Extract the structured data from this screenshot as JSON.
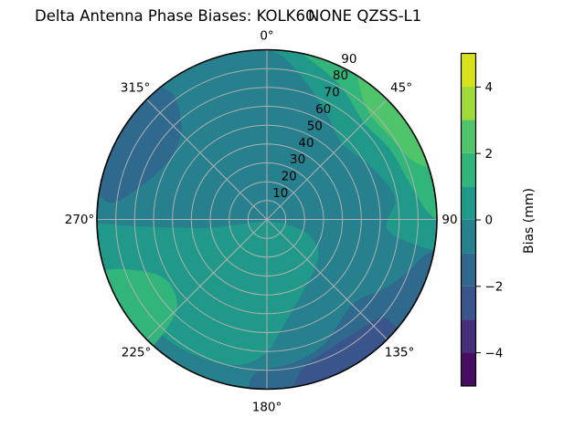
{
  "title": {
    "left": "Delta Antenna Phase Biases: KOLK60",
    "right": "NONE QZSS-L1"
  },
  "polar": {
    "theta_labels": [
      "0°",
      "45°",
      "90",
      "135°",
      "180°",
      "225°",
      "270°",
      "315°"
    ],
    "r_labels": [
      "10",
      "20",
      "30",
      "40",
      "50",
      "60",
      "70",
      "80",
      "90"
    ]
  },
  "colorbar": {
    "label": "Bias (mm)",
    "tick_labels": [
      "4",
      "2",
      "0",
      "−2",
      "−4"
    ],
    "band_colors_top_to_bottom": [
      "#d8e21b",
      "#a0da39",
      "#4fc46a",
      "#31b57b",
      "#21998a",
      "#26808e",
      "#2f6a8e",
      "#39558c",
      "#45307d",
      "#470d60"
    ]
  },
  "colors": {
    "c2_3": "#4fc46a",
    "c1_2": "#31b57b",
    "c0_1": "#21998a",
    "cm1_0": "#26808e",
    "cm2_1": "#2f6a8e",
    "cm3_2": "#39558c",
    "grid": "#b0b0b0",
    "edge": "#000000"
  },
  "chart_data": {
    "type": "polar_contour",
    "title": "Delta Antenna Phase Biases: KOLK60         NONE QZSS-L1",
    "station": "KOLK60",
    "signal": "NONE QZSS-L1",
    "azimuth_tick_deg": [
      0,
      45,
      90,
      135,
      180,
      225,
      270,
      315
    ],
    "radial_rings": [
      10,
      20,
      30,
      40,
      50,
      60,
      70,
      80,
      90
    ],
    "r_range": [
      0,
      90
    ],
    "colorbar_label": "Bias (mm)",
    "colorbar_ticks": [
      4,
      2,
      0,
      -2,
      -4
    ],
    "value_range_mm": [
      -5,
      5
    ],
    "contour_levels_mm": [
      -5,
      -4,
      -3,
      -2,
      -1,
      0,
      1,
      2,
      3,
      4,
      5
    ],
    "background_bias_mm": "-1 to 0",
    "features": [
      {
        "region": "NE rim patch, azimuth 30-75°, radius 78-90",
        "bias_mm": "2 to 3"
      },
      {
        "region": "NE band, azimuth 5-90°, radius 65-90",
        "bias_mm": "1 to 2"
      },
      {
        "region": "N-to-E outer band, azimuth 350-100°, radius 55-90",
        "bias_mm": "0 to 1"
      },
      {
        "region": "SW quadrant field, azimuth 165-270°, radius 0-85",
        "bias_mm": "0 to 1"
      },
      {
        "region": "SW patch, azimuth 222-253°, radius 60-88",
        "bias_mm": "1 to 2"
      },
      {
        "region": "NW blob, azimuth 278-323°, radius 60-90",
        "bias_mm": "-2 to -1"
      },
      {
        "region": "SE rim band, azimuth 100-185°, radius 65-90",
        "bias_mm": "-2 to -1"
      },
      {
        "region": "SE rim sliver, azimuth 127-173°, radius 80-90",
        "bias_mm": "-3 to -2"
      }
    ]
  }
}
